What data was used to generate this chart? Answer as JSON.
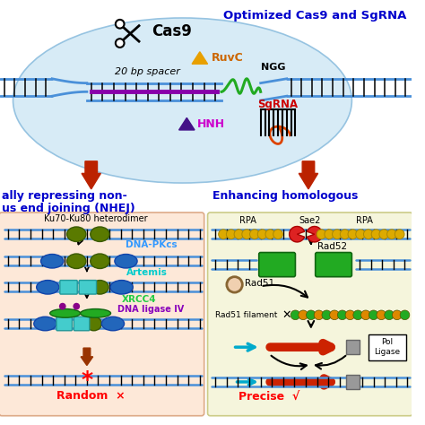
{
  "top_right_label": "Optimized Cas9 and SgRNA",
  "left_section_title1": "ally repressing non-",
  "left_section_title2": "us end joining (NHEJ)",
  "right_section_title": "Enhancing homologous",
  "cas9_label": "Cas9",
  "ruvc_label": "RuvC",
  "hnh_label": "HNH",
  "ngg_label": "NGG",
  "sgrna_label": "SgRNA",
  "spacer_label": "20 bp spacer",
  "ku70_label": "Ku70-Ku80 heterodimer",
  "dnapkcs_label": "DNA-PKcs",
  "artemis_label": "Artemis",
  "xrcc4_label": "XRCC4",
  "dnaligase_label": "DNA ligase IV",
  "random_label": "Random  ×",
  "rpa_label": "RPA",
  "sae2_label": "Sae2",
  "rad52_label": "Rad52",
  "rad51_label": "Rad51",
  "rad51fil_label": "Rad51 filament",
  "pol_ligase_label": "Pol\nLigase",
  "precise_label": "Precise  √",
  "bg_color": "#ffffff",
  "light_blue_bg": "#d0e8f5",
  "left_panel_bg": "#fde8d8",
  "right_panel_bg": "#f5f5dc",
  "dna_color": "#4a90d9",
  "dark_blue_label": "#0000cc"
}
